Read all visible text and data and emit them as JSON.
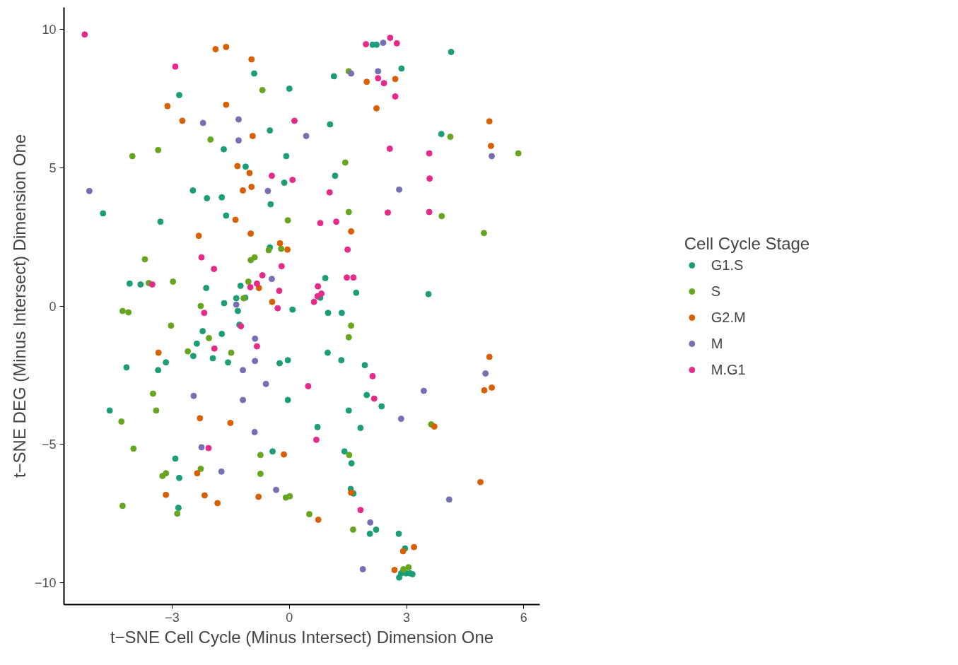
{
  "chart_data": {
    "type": "scatter",
    "xlabel": "t−SNE Cell Cycle (Minus Intersect) Dimension One",
    "ylabel": "t−SNE DEG (Minus Intersect) Dimension One",
    "legend_title": "Cell Cycle Stage",
    "legend": "right",
    "grid": false,
    "marker": "circle",
    "xlim": [
      -5.77,
      6.41
    ],
    "ylim": [
      -10.8,
      10.8
    ],
    "xticks": [
      {
        "value": -3,
        "label": "−3"
      },
      0,
      3,
      6
    ],
    "yticks": [
      {
        "value": -10,
        "label": "−10"
      },
      {
        "value": -5,
        "label": "−5"
      },
      0,
      5,
      10
    ],
    "series": [
      {
        "name": "G1.S",
        "color": "#1b9e77",
        "x": [
          -4.77,
          -4.6,
          -4.17,
          -4.09,
          -3.81,
          -3.3,
          -3.16,
          -3.36,
          -2.92,
          -2.82,
          -2.84,
          -2.82,
          -2.47,
          -2.46,
          -2.37,
          -2.22,
          -2.13,
          -2.11,
          -1.96,
          -1.73,
          -1.73,
          -1.67,
          -1.62,
          -1.68,
          -1.57,
          -1.36,
          -1.32,
          -1.28,
          -1.25,
          -1.13,
          -1.12,
          -0.9,
          -0.5,
          -0.48,
          -0.5,
          -0.43,
          -0.25,
          -0.13,
          -0.08,
          -0.04,
          -0.04,
          0.0,
          0.08,
          0.72,
          0.79,
          0.92,
          0.98,
          0.99,
          1.04,
          1.14,
          1.17,
          1.33,
          1.34,
          1.41,
          1.52,
          1.57,
          1.59,
          1.64,
          1.71,
          1.82,
          1.93,
          1.98,
          2.06,
          2.13,
          2.22,
          2.23,
          2.36,
          2.87,
          2.8,
          2.96,
          2.81,
          2.86,
          2.99,
          3.09,
          3.15,
          3.56,
          3.89,
          4.14
        ],
        "values": [
          3.35,
          -3.78,
          -2.22,
          0.81,
          0.78,
          3.05,
          -2.04,
          -2.32,
          -5.52,
          -6.22,
          -7.3,
          7.63,
          4.18,
          -1.81,
          -1.36,
          -0.91,
          0.65,
          3.9,
          -1.89,
          3.93,
          -1.01,
          0.1,
          3.27,
          5.67,
          -2.04,
          0.28,
          -0.18,
          -0.68,
          0.73,
          0.3,
          5.04,
          8.41,
          6.35,
          3.68,
          2.12,
          -5.26,
          -2.07,
          4.46,
          5.42,
          -1.96,
          -3.4,
          7.86,
          -0.13,
          -4.38,
          0.3,
          1.01,
          -1.69,
          -0.25,
          6.57,
          8.31,
          4.71,
          -1.96,
          -0.25,
          -5.26,
          -3.78,
          -6.62,
          -5.69,
          -6.78,
          0.48,
          -4.41,
          -2.14,
          -3.22,
          -8.24,
          9.45,
          -8.09,
          9.45,
          -3.63,
          8.59,
          -8.24,
          -8.77,
          -9.82,
          -9.67,
          -9.67,
          -9.67,
          -9.7,
          0.43,
          6.22,
          9.19
        ]
      },
      {
        "name": "S",
        "color": "#66a61e",
        "x": [
          -4.27,
          -4.12,
          -4.3,
          -3.99,
          -4.27,
          -4.02,
          -3.7,
          -3.6,
          -3.49,
          -3.41,
          -3.36,
          -3.25,
          -3.16,
          -3.03,
          -2.98,
          -2.87,
          -2.6,
          -2.27,
          -2.27,
          -2.06,
          -2.02,
          -1.49,
          -1.17,
          -1.05,
          -0.99,
          -0.89,
          -0.69,
          -0.74,
          -0.74,
          -0.53,
          -0.21,
          -0.04,
          -0.09,
          0.01,
          0.51,
          1.43,
          1.52,
          1.52,
          1.52,
          1.58,
          1.53,
          1.63,
          2.92,
          3.05,
          3.63,
          3.9,
          4.12,
          4.98,
          5.86
        ],
        "values": [
          -0.18,
          -0.23,
          -4.18,
          -5.16,
          -7.23,
          5.42,
          1.69,
          0.83,
          -3.17,
          -3.78,
          5.64,
          -6.15,
          -6.05,
          -0.71,
          0.88,
          -7.51,
          -1.64,
          0.0,
          -5.89,
          -1.16,
          6.02,
          -1.69,
          0.28,
          0.88,
          1.66,
          1.76,
          7.81,
          -5.39,
          -6.07,
          2.02,
          2.07,
          3.1,
          -6.93,
          -6.88,
          -7.53,
          5.19,
          8.49,
          3.4,
          -1.13,
          -0.71,
          -5.39,
          -8.09,
          -9.52,
          -9.45,
          -4.28,
          3.25,
          6.12,
          2.64,
          5.52
        ]
      },
      {
        "name": "G2.M",
        "color": "#d95f02",
        "x": [
          -3.35,
          -3.16,
          -3.12,
          -2.74,
          -2.32,
          -2.29,
          -2.36,
          -2.17,
          -1.89,
          -1.84,
          -1.62,
          -1.62,
          -1.51,
          -1.38,
          -1.33,
          -1.19,
          -1.02,
          -0.97,
          -0.97,
          -0.94,
          -0.99,
          -0.78,
          -0.79,
          -0.44,
          -0.24,
          -0.14,
          -0.05,
          0.74,
          1.58,
          1.58,
          1.98,
          2.23,
          2.71,
          2.69,
          2.91,
          3.19,
          3.71,
          4.89,
          4.99,
          5.12,
          5.16,
          5.12,
          5.18
        ],
        "values": [
          -1.69,
          -6.83,
          7.23,
          6.7,
          2.54,
          -4.06,
          -6.05,
          -6.85,
          9.29,
          -7.13,
          9.37,
          7.28,
          -4.23,
          3.12,
          5.06,
          4.18,
          4.81,
          4.31,
          8.92,
          6.15,
          2.62,
          0.65,
          -6.9,
          0.15,
          2.27,
          -5.37,
          2.04,
          -7.73,
          2.7,
          -6.75,
          8.11,
          7.15,
          8.21,
          -9.55,
          -8.87,
          -8.72,
          -4.36,
          -6.37,
          -3.05,
          6.68,
          5.79,
          -1.84,
          -2.95
        ]
      },
      {
        "name": "M",
        "color": "#7570b3",
        "x": [
          -5.12,
          -2.45,
          -2.21,
          -2.25,
          -1.74,
          -1.3,
          -1.3,
          -1.36,
          -1.19,
          -1.19,
          -0.88,
          -0.88,
          -0.89,
          -0.6,
          -0.55,
          -0.45,
          -0.34,
          0.43,
          1.58,
          1.88,
          2.07,
          2.27,
          2.4,
          2.81,
          2.86,
          3.44,
          4.09,
          5.02,
          5.18
        ],
        "values": [
          4.16,
          -3.25,
          6.62,
          -5.11,
          -5.99,
          6.75,
          5.99,
          0.05,
          -2.32,
          -3.4,
          -1.18,
          -1.99,
          -4.56,
          -2.82,
          4.16,
          0.98,
          -6.65,
          6.15,
          8.41,
          -9.52,
          -7.83,
          8.49,
          9.52,
          4.21,
          -4.08,
          -3.07,
          -7.0,
          -2.44,
          5.42
        ]
      },
      {
        "name": "M.G1",
        "color": "#e7298a",
        "x": [
          -5.24,
          -3.51,
          -2.92,
          -2.25,
          -2.18,
          -2.07,
          -1.93,
          -1.92,
          -1.24,
          -1.0,
          -0.83,
          -0.83,
          -0.69,
          -0.45,
          -0.3,
          -0.26,
          -0.2,
          0.08,
          0.13,
          0.48,
          0.63,
          0.69,
          0.73,
          0.72,
          0.82,
          0.79,
          1.03,
          1.2,
          1.49,
          1.47,
          1.64,
          1.82,
          1.96,
          2.13,
          2.17,
          2.27,
          2.42,
          2.57,
          2.52,
          2.58,
          2.71,
          2.75,
          3.58,
          3.59,
          3.58
        ],
        "values": [
          9.82,
          0.78,
          8.66,
          1.76,
          -0.25,
          -5.14,
          1.34,
          -1.54,
          -0.73,
          0.68,
          0.81,
          -1.46,
          1.11,
          4.71,
          -0.08,
          0.55,
          1.44,
          4.56,
          6.7,
          -2.9,
          0.15,
          -4.84,
          0.71,
          0.35,
          0.45,
          3.0,
          4.11,
          3.05,
          2.04,
          1.03,
          1.03,
          -7.38,
          9.47,
          -2.54,
          -3.35,
          8.24,
          8.06,
          5.69,
          3.38,
          9.7,
          7.58,
          9.5,
          5.52,
          4.61,
          3.4
        ]
      }
    ]
  }
}
